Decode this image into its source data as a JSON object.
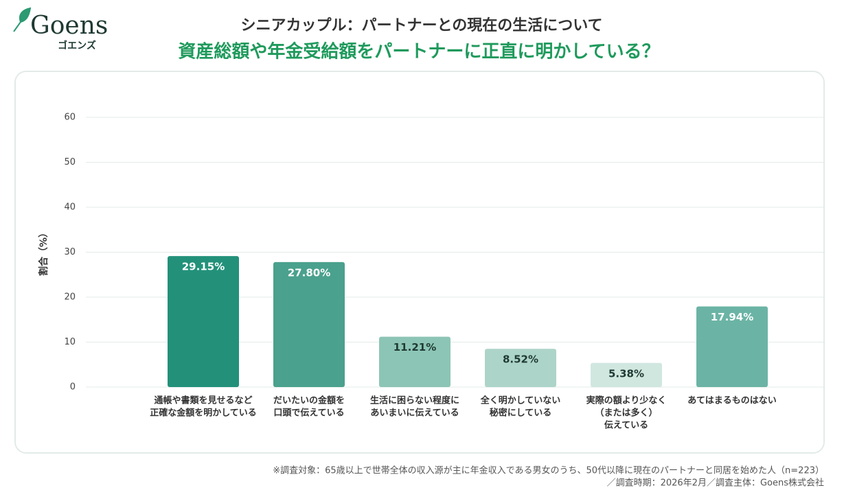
{
  "brand": {
    "name": "Goens",
    "kana": "ゴエンズ"
  },
  "chart_data": {
    "type": "bar",
    "title": "シニアカップル：パートナーとの現在の生活について",
    "subtitle": "資産総額や年金受給額をパートナーに正直に明かしている？",
    "y_label": "割合（%）",
    "categories": [
      [
        "通帳や書類を見せるなど",
        "正確な金額を明かしている"
      ],
      [
        "だいたいの金額を",
        "口頭で伝えている"
      ],
      [
        "生活に困らない程度に",
        "あいまいに伝えている"
      ],
      [
        "全く明かしていない",
        "秘密にしている"
      ],
      [
        "実際の額より少なく",
        "（または多く）",
        "伝えている"
      ],
      [
        "あてはまるものはない"
      ]
    ],
    "values": [
      29.15,
      27.8,
      11.21,
      8.52,
      5.38,
      17.94
    ],
    "value_labels": [
      "29.15%",
      "27.80%",
      "11.21%",
      "8.52%",
      "5.38%",
      "17.94%"
    ],
    "colors": [
      "#23917a",
      "#4aa18d",
      "#8cc5b5",
      "#add4c9",
      "#d0e7e0",
      "#6bb4a5"
    ],
    "value_label_colors": [
      "#ffffff",
      "#ffffff",
      "#1f3a33",
      "#1f3a33",
      "#1f3a33",
      "#ffffff"
    ],
    "ylim": [
      0,
      60
    ],
    "yticks": [
      0,
      10,
      20,
      30,
      40,
      50,
      60
    ],
    "grid": true,
    "notes": [
      "※調査対象：65歳以上で世帯全体の収入源が主に年金収入である男女のうち、50代以降に現在のパートナーと同居を始めた人（n=223）",
      "／調査時期：2026年2月／調査主体：Goens株式会社"
    ]
  }
}
